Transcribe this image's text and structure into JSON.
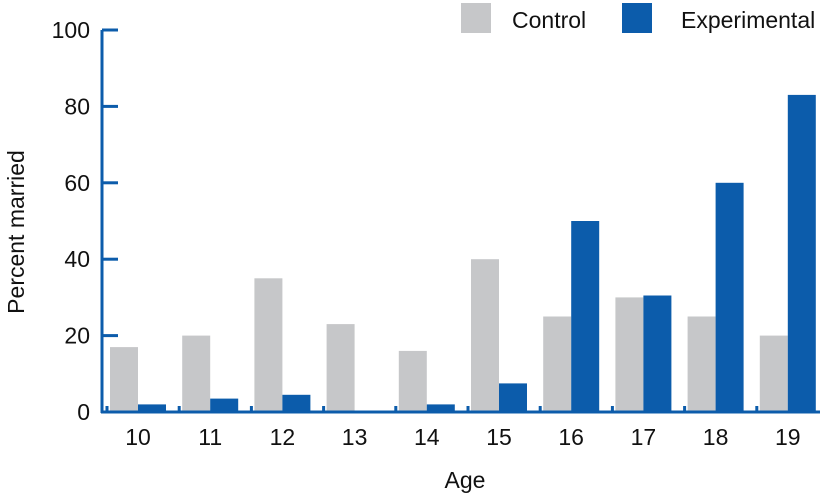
{
  "chart_data": {
    "type": "bar",
    "xlabel": "Age",
    "ylabel": "Percent married",
    "ylim": [
      0,
      100
    ],
    "yticks": [
      "0",
      "20",
      "40",
      "60",
      "80",
      "100"
    ],
    "categories": [
      "10",
      "11",
      "12",
      "13",
      "14",
      "15",
      "16",
      "17",
      "18",
      "19"
    ],
    "series": [
      {
        "name": "Control",
        "color": "#c6c7c9",
        "values": [
          17,
          20,
          35,
          23,
          16,
          40,
          25,
          30,
          25,
          20
        ]
      },
      {
        "name": "Experimental",
        "color": "#0c5cab",
        "values": [
          2,
          3.5,
          4.5,
          0,
          2,
          7.5,
          50,
          30.5,
          60,
          83
        ]
      }
    ],
    "axis_color": "#0c5cab",
    "legend_position": "top-right",
    "grid": false
  }
}
